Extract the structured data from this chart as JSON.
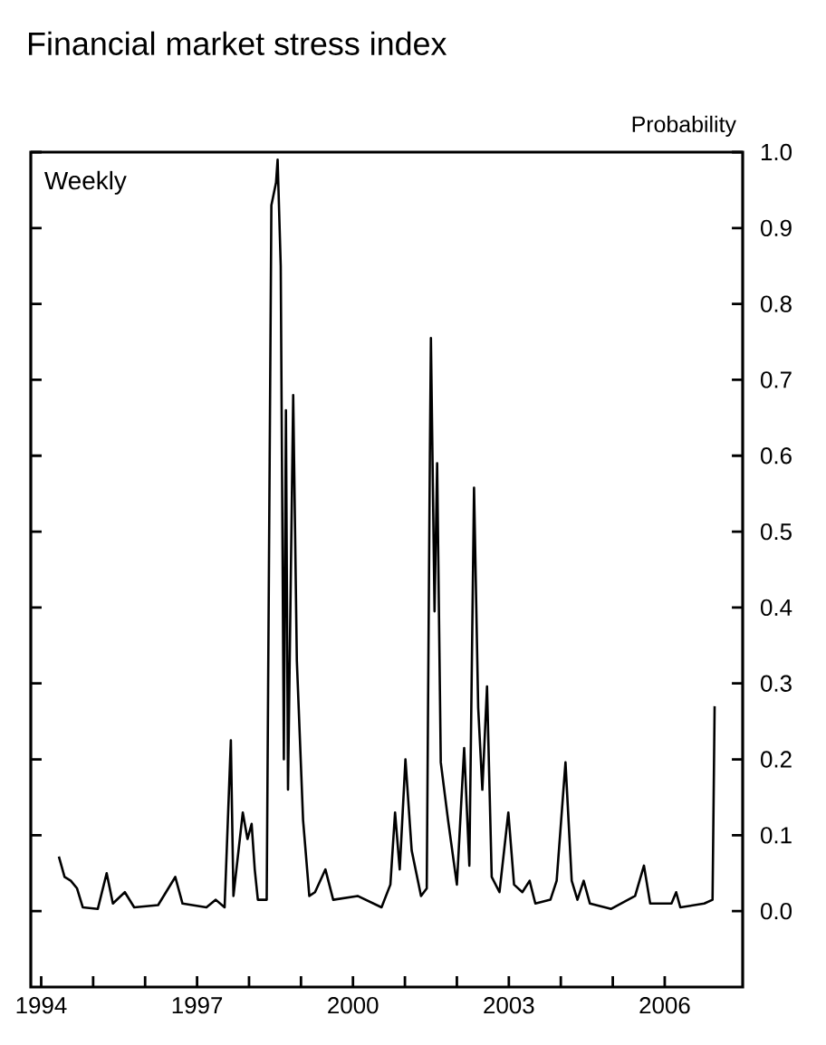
{
  "chart_data": {
    "type": "line",
    "title": "Financial market stress index",
    "ylabel": "Probability",
    "annotations": [
      "Weekly"
    ],
    "xlim": [
      1993.8,
      2007.5
    ],
    "ylim": [
      -0.1,
      1.0
    ],
    "xticks": [
      1994,
      {
        "value": 1995,
        "label": null
      },
      {
        "value": 1996,
        "label": null
      },
      1997,
      {
        "value": 1998,
        "label": null
      },
      {
        "value": 1999,
        "label": null
      },
      2000,
      {
        "value": 2001,
        "label": null
      },
      {
        "value": 2002,
        "label": null
      },
      2003,
      {
        "value": 2004,
        "label": null
      },
      {
        "value": 2005,
        "label": null
      },
      2006
    ],
    "yticks": [
      {
        "value": 0,
        "label": "0.0"
      },
      0.1,
      0.2,
      0.3,
      0.4,
      0.5,
      0.6,
      0.7,
      0.8,
      0.9,
      {
        "value": 1,
        "label": "1.0"
      }
    ],
    "series": [
      {
        "color": "#000000",
        "x": [
          1994.34,
          1994.45,
          1994.57,
          1994.69,
          1994.8,
          1995.09,
          1995.26,
          1995.38,
          1995.61,
          1995.79,
          1996.25,
          1996.58,
          1996.72,
          1997.18,
          1997.36,
          1997.53,
          1997.65,
          1997.7,
          1997.88,
          1997.97,
          1998.05,
          1998.11,
          1998.17,
          1998.34,
          1998.43,
          1998.52,
          1998.55,
          1998.61,
          1998.67,
          1998.71,
          1998.75,
          1998.85,
          1998.92,
          1999.04,
          1999.16,
          1999.27,
          1999.47,
          1999.62,
          2000.09,
          2000.55,
          2000.72,
          2000.81,
          2000.9,
          2001.01,
          2001.13,
          2001.31,
          2001.42,
          2001.48,
          2001.5,
          2001.57,
          2001.62,
          2001.69,
          2001.83,
          2002.0,
          2002.14,
          2002.24,
          2002.33,
          2002.41,
          2002.49,
          2002.58,
          2002.67,
          2002.82,
          2002.99,
          2003.1,
          2003.26,
          2003.4,
          2003.51,
          2003.8,
          2003.92,
          2004.09,
          2004.21,
          2004.32,
          2004.44,
          2004.56,
          2004.97,
          2005.43,
          2005.6,
          2005.72,
          2006.13,
          2006.22,
          2006.3,
          2006.76,
          2006.92,
          2006.96
        ],
        "values": [
          0.072,
          0.045,
          0.04,
          0.03,
          0.005,
          0.003,
          0.05,
          0.01,
          0.025,
          0.005,
          0.008,
          0.045,
          0.01,
          0.005,
          0.015,
          0.005,
          0.225,
          0.02,
          0.13,
          0.095,
          0.115,
          0.055,
          0.015,
          0.015,
          0.93,
          0.96,
          0.99,
          0.85,
          0.2,
          0.66,
          0.16,
          0.68,
          0.33,
          0.12,
          0.02,
          0.025,
          0.055,
          0.015,
          0.02,
          0.005,
          0.035,
          0.13,
          0.055,
          0.2,
          0.08,
          0.02,
          0.03,
          0.6,
          0.755,
          0.395,
          0.59,
          0.196,
          0.12,
          0.035,
          0.215,
          0.06,
          0.558,
          0.268,
          0.16,
          0.296,
          0.045,
          0.025,
          0.13,
          0.035,
          0.025,
          0.04,
          0.01,
          0.015,
          0.04,
          0.196,
          0.04,
          0.015,
          0.04,
          0.01,
          0.003,
          0.02,
          0.06,
          0.01,
          0.01,
          0.025,
          0.005,
          0.01,
          0.015,
          0.27
        ]
      }
    ]
  }
}
